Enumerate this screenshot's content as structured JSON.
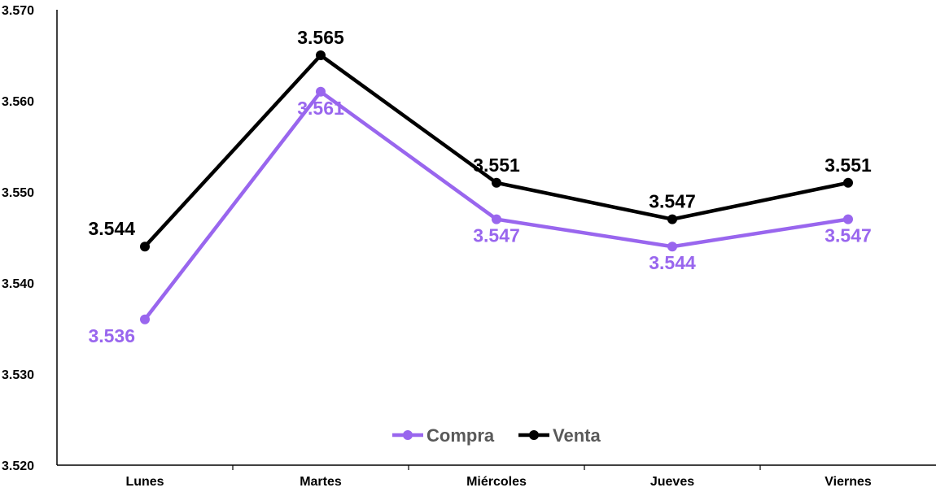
{
  "chart_data": {
    "type": "line",
    "categories": [
      "Lunes",
      "Martes",
      "Miércoles",
      "Jueves",
      "Viernes"
    ],
    "series": [
      {
        "name": "Compra",
        "color": "#9966ee",
        "values": [
          3536,
          3561,
          3547,
          3544,
          3547
        ],
        "labels": [
          "3.536",
          "3.561",
          "3.547",
          "3.544",
          "3.547"
        ],
        "label_position": "below"
      },
      {
        "name": "Venta",
        "color": "#000000",
        "values": [
          3544,
          3565,
          3551,
          3547,
          3551
        ],
        "labels": [
          "3.544",
          "3.565",
          "3.551",
          "3.547",
          "3.551"
        ],
        "label_position": "above"
      }
    ],
    "ylim": [
      3520,
      3570
    ],
    "yticks": [
      3520,
      3530,
      3540,
      3550,
      3560,
      3570
    ],
    "ytick_labels": [
      "3.520",
      "3.530",
      "3.540",
      "3.550",
      "3.560",
      "3.570"
    ],
    "grid": false,
    "legend_position": "bottom-center",
    "title": "",
    "xlabel": "",
    "ylabel": ""
  }
}
